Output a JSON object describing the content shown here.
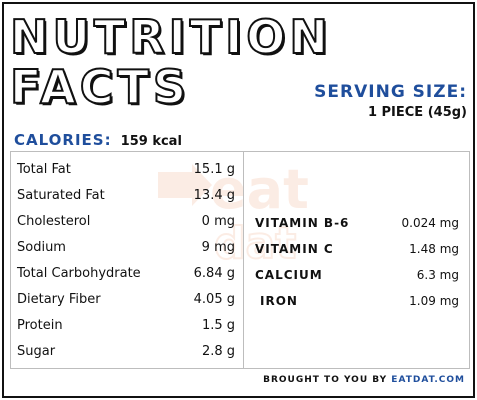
{
  "title": {
    "line1": "NUTRITION",
    "line2": "FACTS"
  },
  "serving": {
    "label": "SERVING SIZE:",
    "value": "1 PIECE (45g)"
  },
  "calories": {
    "label": "CALORIES:",
    "value": "159 kcal"
  },
  "nutrients_left": [
    {
      "label": "Total Fat",
      "value": "15.1 g"
    },
    {
      "label": "Saturated Fat",
      "value": "13.4 g"
    },
    {
      "label": "Cholesterol",
      "value": "0 mg"
    },
    {
      "label": "Sodium",
      "value": "9 mg"
    },
    {
      "label": "Total Carbohydrate",
      "value": "6.84 g"
    },
    {
      "label": "Dietary Fiber",
      "value": "4.05 g"
    },
    {
      "label": "Protein",
      "value": "1.5 g"
    },
    {
      "label": "Sugar",
      "value": "2.8 g"
    }
  ],
  "nutrients_right": [
    {
      "label": "VITAMIN B-6",
      "value": "0.024 mg"
    },
    {
      "label": "VITAMIN C",
      "value": "1.48 mg"
    },
    {
      "label": "CALCIUM",
      "value": "6.3 mg"
    },
    {
      "label": "IRON",
      "value": "1.09 mg"
    }
  ],
  "watermark": {
    "text": "eat dat"
  },
  "footer": {
    "prefix": "BROUGHT TO YOU BY",
    "brand": "EATDAT.COM"
  },
  "colors": {
    "accent": "#1f4e9c",
    "watermark": "#e8733a"
  }
}
